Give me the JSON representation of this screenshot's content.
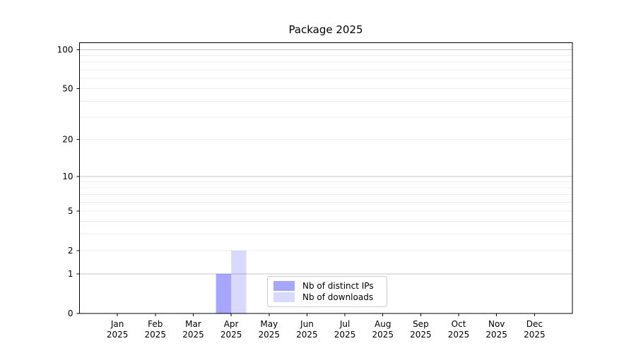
{
  "title": "Package 2025",
  "chart_data": {
    "type": "bar",
    "title": "Package 2025",
    "categories": [
      "Jan",
      "Feb",
      "Mar",
      "Apr",
      "May",
      "Jun",
      "Jul",
      "Aug",
      "Sep",
      "Oct",
      "Nov",
      "Dec"
    ],
    "category_year": "2025",
    "series": [
      {
        "name": "Nb of distinct IPs",
        "fill": "rgba(0,0,255,0.35)",
        "values": [
          0,
          0,
          0,
          1,
          0,
          0,
          0,
          0,
          0,
          0,
          0,
          0
        ]
      },
      {
        "name": "Nb of downloads",
        "fill": "rgba(0,0,255,0.15)",
        "values": [
          0,
          0,
          0,
          2,
          0,
          0,
          0,
          0,
          0,
          0,
          0,
          0
        ]
      }
    ],
    "xlabel": "",
    "ylabel": "",
    "yscale": "log1p",
    "ylim": [
      0,
      113
    ],
    "yticks": [
      0,
      1,
      2,
      5,
      10,
      20,
      50,
      100
    ],
    "major_gridlines": [
      1,
      10,
      100
    ],
    "minor_gridlines": [
      3,
      4,
      6,
      7,
      8,
      9,
      30,
      40,
      60,
      70,
      80,
      90
    ],
    "grid": "horizontal",
    "legend_position": "lower center"
  }
}
